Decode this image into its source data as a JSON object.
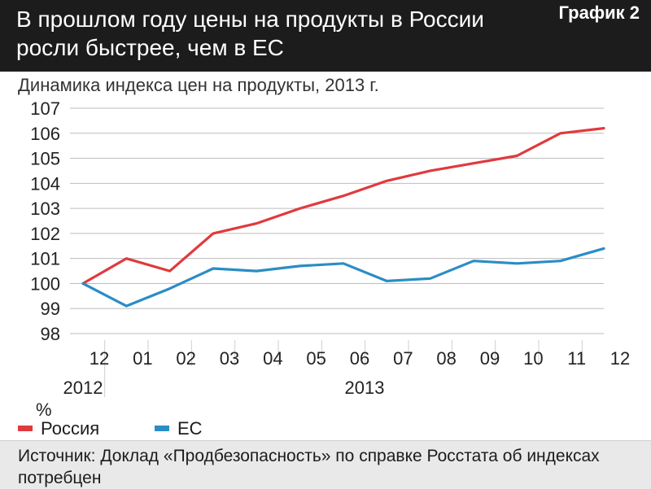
{
  "header": {
    "title": "В прошлом году цены на продукты в России росли быстрее, чем в ЕС",
    "tag": "График 2"
  },
  "subtitle": "Динамика индекса цен на продукты, 2013 г.",
  "unit_label": "%",
  "legend": [
    {
      "label": "Россия",
      "color": "#e03a3e"
    },
    {
      "label": "ЕС",
      "color": "#2a8dc5"
    }
  ],
  "source": "Источник: Доклад «Продбезопасность» по справке Росстата об индексах потребцен",
  "chart_data": {
    "type": "line",
    "categories": [
      "12",
      "01",
      "02",
      "03",
      "04",
      "05",
      "06",
      "07",
      "08",
      "09",
      "10",
      "11",
      "12"
    ],
    "year_labels": [
      {
        "label": "2012",
        "from": 0,
        "to": 0
      },
      {
        "label": "2013",
        "from": 1,
        "to": 12
      }
    ],
    "y_ticks": [
      98,
      99,
      100,
      101,
      102,
      103,
      104,
      105,
      106,
      107
    ],
    "ylim": [
      98,
      107
    ],
    "grid": "horizontal",
    "legend_position": "bottom-left",
    "series": [
      {
        "name": "Россия",
        "color": "#e03a3e",
        "values": [
          100.0,
          101.0,
          100.5,
          102.0,
          102.4,
          103.0,
          103.5,
          104.1,
          104.5,
          104.8,
          105.1,
          106.0,
          106.2
        ]
      },
      {
        "name": "ЕС",
        "color": "#2a8dc5",
        "values": [
          100.0,
          99.1,
          99.8,
          100.6,
          100.5,
          100.7,
          100.8,
          100.1,
          100.2,
          100.9,
          100.8,
          100.9,
          101.4
        ]
      }
    ]
  }
}
